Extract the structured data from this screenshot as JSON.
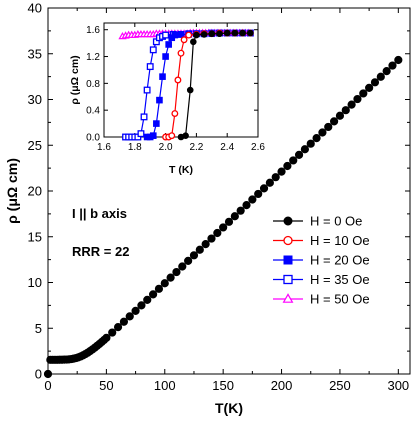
{
  "chart_data": [
    {
      "type": "scatter",
      "xlabel": "T(K)",
      "ylabel": "ρ (μΩ cm)",
      "xlim": [
        0,
        310
      ],
      "ylim": [
        0,
        40
      ],
      "x_ticks": [
        "0",
        "50",
        "100",
        "150",
        "200",
        "250",
        "300"
      ],
      "y_ticks": [
        "0",
        "5",
        "10",
        "15",
        "20",
        "25",
        "30",
        "35",
        "40"
      ],
      "annotations": {
        "current": "I || b axis",
        "rrr": "RRR = 22"
      },
      "legend_position": "right-middle",
      "series": [
        {
          "name": "H = 0 Oe",
          "color": "#000000",
          "marker": "filled-circle",
          "x": [
            0,
            2,
            4,
            6,
            8,
            10,
            12,
            14,
            16,
            18,
            20,
            22,
            24,
            26,
            28,
            30,
            32,
            34,
            36,
            38,
            40,
            42,
            44,
            46,
            48,
            50,
            55,
            60,
            65,
            70,
            75,
            80,
            85,
            90,
            95,
            100,
            105,
            110,
            115,
            120,
            125,
            130,
            135,
            140,
            145,
            150,
            155,
            160,
            165,
            170,
            175,
            180,
            185,
            190,
            195,
            200,
            205,
            210,
            215,
            220,
            225,
            230,
            235,
            240,
            245,
            250,
            255,
            260,
            265,
            270,
            275,
            280,
            285,
            290,
            295,
            300
          ],
          "y": [
            0,
            1.55,
            1.55,
            1.55,
            1.55,
            1.56,
            1.56,
            1.57,
            1.58,
            1.6,
            1.63,
            1.68,
            1.74,
            1.82,
            1.92,
            2.04,
            2.18,
            2.33,
            2.5,
            2.68,
            2.87,
            3.07,
            3.28,
            3.5,
            3.72,
            3.95,
            4.53,
            5.12,
            5.71,
            6.3,
            6.9,
            7.5,
            8.1,
            8.7,
            9.31,
            9.92,
            10.53,
            11.14,
            11.75,
            12.36,
            12.97,
            13.58,
            14.19,
            14.8,
            15.41,
            16.02,
            16.63,
            17.24,
            17.85,
            18.46,
            19.07,
            19.68,
            20.29,
            20.9,
            21.51,
            22.12,
            22.73,
            23.34,
            23.95,
            24.56,
            25.17,
            25.78,
            26.39,
            27.0,
            27.61,
            28.22,
            28.83,
            29.44,
            30.05,
            30.66,
            31.27,
            31.88,
            32.49,
            33.1,
            33.71,
            34.32
          ]
        }
      ]
    },
    {
      "type": "scatter",
      "xlabel": "T (K)",
      "ylabel": "ρ (μΩ cm)",
      "xlim": [
        1.6,
        2.6
      ],
      "ylim": [
        0,
        1.7
      ],
      "x_ticks": [
        "1.6",
        "1.8",
        "2.0",
        "2.2",
        "2.4",
        "2.6"
      ],
      "y_ticks": [
        "0.0",
        "0.4",
        "0.8",
        "1.2",
        "1.6"
      ],
      "series": [
        {
          "name": "H = 0 Oe",
          "color": "#000000",
          "marker": "filled-circle",
          "x": [
            2.1,
            2.13,
            2.16,
            2.18,
            2.2,
            2.25,
            2.3,
            2.35,
            2.4,
            2.45,
            2.5,
            2.55
          ],
          "y": [
            0,
            0.02,
            0.7,
            1.42,
            1.52,
            1.53,
            1.54,
            1.54,
            1.55,
            1.55,
            1.55,
            1.55
          ]
        },
        {
          "name": "H = 10 Oe",
          "color": "#ff0000",
          "marker": "open-circle",
          "x": [
            2.0,
            2.02,
            2.04,
            2.06,
            2.08,
            2.1,
            2.12,
            2.15,
            2.2,
            2.25,
            2.3,
            2.35,
            2.4,
            2.45,
            2.5,
            2.55
          ],
          "y": [
            0,
            0,
            0.02,
            0.35,
            0.85,
            1.25,
            1.45,
            1.52,
            1.53,
            1.54,
            1.54,
            1.55,
            1.55,
            1.55,
            1.55,
            1.55
          ]
        },
        {
          "name": "H = 20 Oe",
          "color": "#0000ff",
          "marker": "filled-square",
          "x": [
            1.88,
            1.9,
            1.92,
            1.94,
            1.96,
            1.98,
            2.0,
            2.02,
            2.04,
            2.06,
            2.1,
            2.15,
            2.2,
            2.25,
            2.3,
            2.35,
            2.4,
            2.45,
            2.5,
            2.55
          ],
          "y": [
            0,
            0,
            0.02,
            0.2,
            0.55,
            0.9,
            1.2,
            1.38,
            1.48,
            1.52,
            1.53,
            1.53,
            1.54,
            1.54,
            1.54,
            1.55,
            1.55,
            1.55,
            1.55,
            1.55
          ]
        },
        {
          "name": "H = 35 Oe",
          "color": "#0000ff",
          "marker": "open-square",
          "x": [
            1.74,
            1.76,
            1.78,
            1.8,
            1.82,
            1.84,
            1.86,
            1.88,
            1.9,
            1.92,
            1.94,
            1.96,
            1.98,
            2.0,
            2.05,
            2.1,
            2.15,
            2.2,
            2.25,
            2.3,
            2.35,
            2.4,
            2.45,
            2.5,
            2.55
          ],
          "y": [
            0,
            0,
            0,
            0,
            0,
            0.05,
            0.3,
            0.7,
            1.05,
            1.3,
            1.42,
            1.48,
            1.5,
            1.52,
            1.53,
            1.53,
            1.54,
            1.54,
            1.54,
            1.55,
            1.55,
            1.55,
            1.55,
            1.55,
            1.55
          ]
        },
        {
          "name": "H = 50 Oe",
          "color": "#ff00ff",
          "marker": "open-triangle",
          "x": [
            1.72,
            1.74,
            1.76,
            1.78,
            1.8,
            1.82,
            1.84,
            1.86,
            1.88,
            1.9,
            1.92,
            1.94,
            1.96,
            1.98,
            2.0,
            2.02,
            2.04,
            2.06,
            2.08,
            2.1,
            2.12,
            2.14,
            2.16,
            2.18,
            2.2,
            2.22,
            2.24,
            2.26,
            2.28,
            2.3,
            2.32,
            2.34,
            2.36,
            2.38,
            2.4,
            2.42,
            2.44,
            2.46,
            2.48,
            2.5,
            2.52,
            2.54
          ],
          "y": [
            1.5,
            1.51,
            1.52,
            1.52,
            1.52,
            1.53,
            1.53,
            1.53,
            1.53,
            1.53,
            1.53,
            1.54,
            1.54,
            1.54,
            1.54,
            1.54,
            1.54,
            1.54,
            1.54,
            1.54,
            1.54,
            1.54,
            1.55,
            1.55,
            1.55,
            1.55,
            1.55,
            1.55,
            1.55,
            1.55,
            1.55,
            1.55,
            1.55,
            1.55,
            1.55,
            1.55,
            1.55,
            1.55,
            1.55,
            1.55,
            1.55,
            1.55
          ]
        }
      ]
    }
  ]
}
